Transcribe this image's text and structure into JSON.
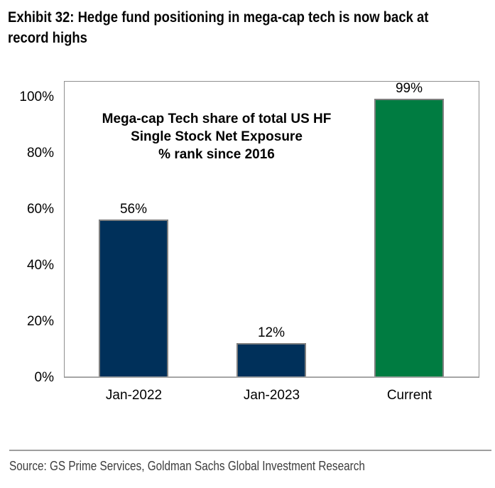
{
  "header": {
    "title_line1": "Exhibit 32: Hedge fund positioning in mega-cap tech is now back at",
    "title_line2": "record highs"
  },
  "chart_data": {
    "type": "bar",
    "title_lines": [
      "Mega-cap Tech share of total US HF",
      "Single Stock Net Exposure",
      "% rank since 2016"
    ],
    "categories": [
      "Jan-2022",
      "Jan-2023",
      "Current"
    ],
    "values": [
      56,
      12,
      99
    ],
    "value_labels": [
      "56%",
      "12%",
      "99%"
    ],
    "bar_colors": [
      "#00305a",
      "#00305a",
      "#007c41"
    ],
    "y_ticks": [
      "0%",
      "20%",
      "40%",
      "60%",
      "80%",
      "100%"
    ],
    "y_tick_values": [
      0,
      20,
      40,
      60,
      80,
      100
    ],
    "ylim": [
      0,
      106
    ],
    "xlabel": "",
    "ylabel": "",
    "grid": false,
    "legend": "none"
  },
  "footer": {
    "source": "Source: GS Prime Services, Goldman Sachs Global Investment Research"
  },
  "colors": {
    "navy": "#00305a",
    "green": "#007c41",
    "plot_border": "#8f8f8f",
    "axis_line": "#a6a6a6",
    "bar_border": "#7f7f7f",
    "divider": "#9e9e9e",
    "source_text": "#3d3d3d"
  }
}
